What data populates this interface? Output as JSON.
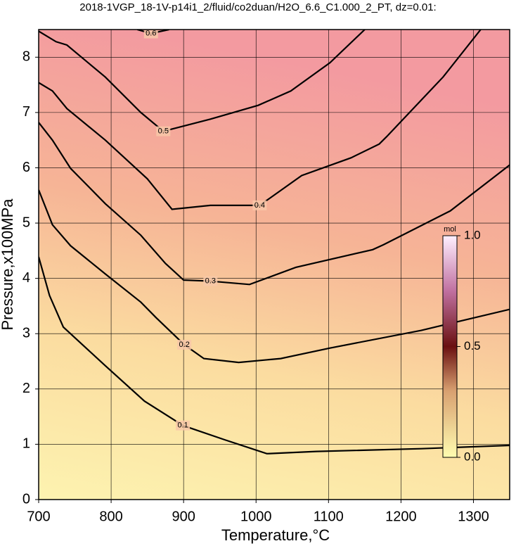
{
  "chart_data": {
    "type": "contour",
    "title": "2018-1VGP_18-1V-p14i1_2/fluid/co2duan/H2O_6.6_C1.000_2_PT, dz=0.01:",
    "x_label": "Temperature,°C",
    "y_label": "Pressure,x100MPa",
    "xlim": [
      700,
      1350
    ],
    "ylim": [
      0,
      8.5
    ],
    "xticks": [
      700,
      800,
      900,
      1000,
      1100,
      1200,
      1300
    ],
    "yticks": [
      0,
      1,
      2,
      3,
      4,
      5,
      6,
      7,
      8
    ],
    "grid": true,
    "line_color": "#000000",
    "contours": [
      {
        "level": 0.6,
        "x": [
          836,
          855,
          880
        ],
        "y": [
          8.5,
          8.43,
          8.5
        ]
      },
      {
        "level": 0.5,
        "x": [
          700,
          724,
          739,
          792,
          841,
          872,
          937,
          1003,
          1048,
          1102,
          1150
        ],
        "y": [
          8.47,
          8.28,
          8.22,
          7.64,
          7.0,
          6.66,
          6.88,
          7.13,
          7.39,
          7.9,
          8.5
        ]
      },
      {
        "level": 0.4,
        "x": [
          700,
          719,
          739,
          792,
          850,
          884,
          937,
          1005,
          1063,
          1131,
          1170,
          1180,
          1258,
          1310
        ],
        "y": [
          7.54,
          7.39,
          7.07,
          6.5,
          5.8,
          5.25,
          5.32,
          5.32,
          5.86,
          6.18,
          6.43,
          6.56,
          7.64,
          8.5
        ]
      },
      {
        "level": 0.3,
        "x": [
          700,
          719,
          744,
          792,
          841,
          875,
          900,
          937,
          991,
          1055,
          1161,
          1176,
          1268,
          1350
        ],
        "y": [
          6.82,
          6.5,
          5.99,
          5.35,
          4.78,
          4.27,
          3.97,
          3.95,
          3.89,
          4.2,
          4.52,
          4.61,
          5.22,
          6.05
        ]
      },
      {
        "level": 0.2,
        "x": [
          700,
          719,
          744,
          792,
          841,
          862,
          901,
          928,
          976,
          1034,
          1102,
          1228,
          1350
        ],
        "y": [
          5.6,
          4.97,
          4.59,
          4.08,
          3.57,
          3.29,
          2.8,
          2.55,
          2.48,
          2.55,
          2.74,
          3.06,
          3.44
        ]
      },
      {
        "level": 0.1,
        "x": [
          700,
          715,
          734,
          792,
          846,
          899,
          957,
          1015,
          1083,
          1228,
          1350
        ],
        "y": [
          4.39,
          3.69,
          3.12,
          2.42,
          1.78,
          1.34,
          1.08,
          0.83,
          0.87,
          0.92,
          0.98
        ]
      }
    ],
    "colorbar": {
      "label": "mol",
      "lim": [
        0,
        1
      ],
      "ticks": [
        {
          "value": 0,
          "label": "0.0"
        },
        0.5,
        {
          "value": 1,
          "label": "1.0"
        }
      ]
    }
  }
}
